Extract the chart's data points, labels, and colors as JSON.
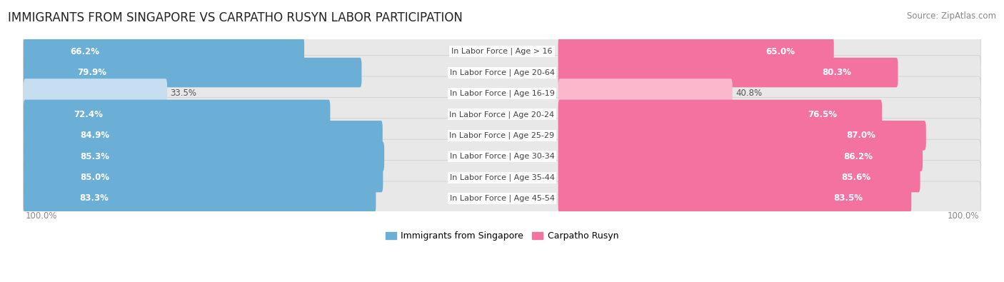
{
  "title": "IMMIGRANTS FROM SINGAPORE VS CARPATHO RUSYN LABOR PARTICIPATION",
  "source": "Source: ZipAtlas.com",
  "categories": [
    "In Labor Force | Age > 16",
    "In Labor Force | Age 20-64",
    "In Labor Force | Age 16-19",
    "In Labor Force | Age 20-24",
    "In Labor Force | Age 25-29",
    "In Labor Force | Age 30-34",
    "In Labor Force | Age 35-44",
    "In Labor Force | Age 45-54"
  ],
  "singapore_values": [
    66.2,
    79.9,
    33.5,
    72.4,
    84.9,
    85.3,
    85.0,
    83.3
  ],
  "rusyn_values": [
    65.0,
    80.3,
    40.8,
    76.5,
    87.0,
    86.2,
    85.6,
    83.5
  ],
  "singapore_color": "#6BAED6",
  "rusyn_color": "#F472A0",
  "singapore_color_light": "#C6DEEF",
  "rusyn_color_light": "#FAB8CC",
  "pill_bg_color": "#E8E8E8",
  "label_color_dark": "#555555",
  "label_color_white": "#FFFFFF",
  "max_value": 100.0,
  "legend_singapore": "Immigrants from Singapore",
  "legend_rusyn": "Carpatho Rusyn",
  "title_fontsize": 12,
  "source_fontsize": 8.5,
  "bar_label_fontsize": 8.5,
  "cat_label_fontsize": 8,
  "legend_fontsize": 9,
  "threshold_light": 50
}
